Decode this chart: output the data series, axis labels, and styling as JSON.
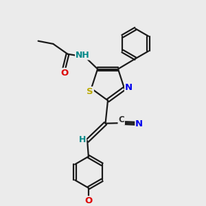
{
  "bg_color": "#ebebeb",
  "bond_color": "#1a1a1a",
  "bond_lw": 1.6,
  "atom_colors": {
    "N": "#0000ee",
    "O": "#dd0000",
    "S": "#bbaa00",
    "H": "#008888"
  },
  "fs": 9.5
}
